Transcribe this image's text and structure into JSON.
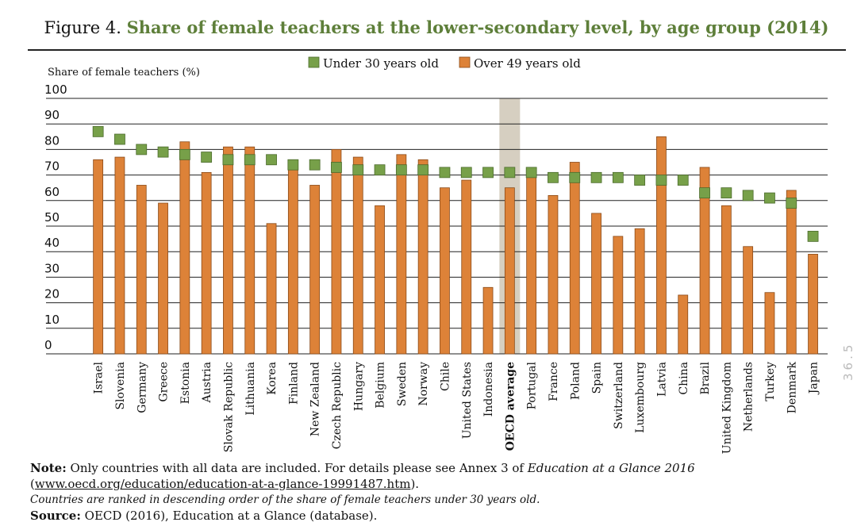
{
  "figure": {
    "number": "Figure 4.",
    "title": "Share of female teachers at the lower-secondary level, by age group (2014)"
  },
  "notes": {
    "note_label": "Note:",
    "note_text_1": "Only countries with all data are included. For details please see Annex 3 of",
    "note_italic": "Education at a Glance 2016",
    "note_link": "www.oecd.org/education/education-at-a-glance-19991487.htm",
    "ranked": "Countries are ranked in descending order of the share of female teachers under 30 years old.",
    "source_label": "Source:",
    "source_text": "OECD (2016), Education at a Glance (database)."
  },
  "page_number": "36.5",
  "colors": {
    "under30": "#77a049",
    "over49": "#dd8238",
    "highlight": "#d6cfc1",
    "title_green": "#5e7f3a"
  },
  "chart_data": {
    "type": "bar",
    "ylabel": "Share of female teachers (%)",
    "ylim": [
      0,
      100
    ],
    "yticks": [
      0,
      10,
      20,
      30,
      40,
      50,
      60,
      70,
      80,
      90,
      100
    ],
    "legend_position": "top",
    "highlight_category": "OECD average",
    "categories": [
      "Israel",
      "Slovenia",
      "Germany",
      "Greece",
      "Estonia",
      "Austria",
      "Slovak Republic",
      "Lithuania",
      "Korea",
      "Finland",
      "New Zealand",
      "Czech Republic",
      "Hungary",
      "Belgium",
      "Sweden",
      "Norway",
      "Chile",
      "United States",
      "Indonesia",
      "OECD average",
      "Portugal",
      "France",
      "Poland",
      "Spain",
      "Switzerland",
      "Luxembourg",
      "Latvia",
      "China",
      "Brazil",
      "United Kingdom",
      "Netherlands",
      "Turkey",
      "Denmark",
      "Japan"
    ],
    "series": [
      {
        "name": "Under 30 years old",
        "mark": "square",
        "color": "#77a049",
        "values": [
          87,
          84,
          80,
          79,
          78,
          77,
          76,
          76,
          76,
          74,
          74,
          73,
          72,
          72,
          72,
          72,
          71,
          71,
          71,
          71,
          71,
          69,
          69,
          69,
          69,
          68,
          68,
          68,
          63,
          63,
          62,
          61,
          59,
          46
        ]
      },
      {
        "name": "Over 49 years old",
        "mark": "bar",
        "color": "#dd8238",
        "values": [
          76,
          77,
          66,
          59,
          83,
          71,
          81,
          81,
          51,
          73,
          66,
          80,
          77,
          58,
          78,
          76,
          65,
          68,
          26,
          65,
          71,
          62,
          75,
          55,
          46,
          49,
          85,
          23,
          73,
          58,
          42,
          24,
          64,
          39
        ]
      }
    ]
  }
}
